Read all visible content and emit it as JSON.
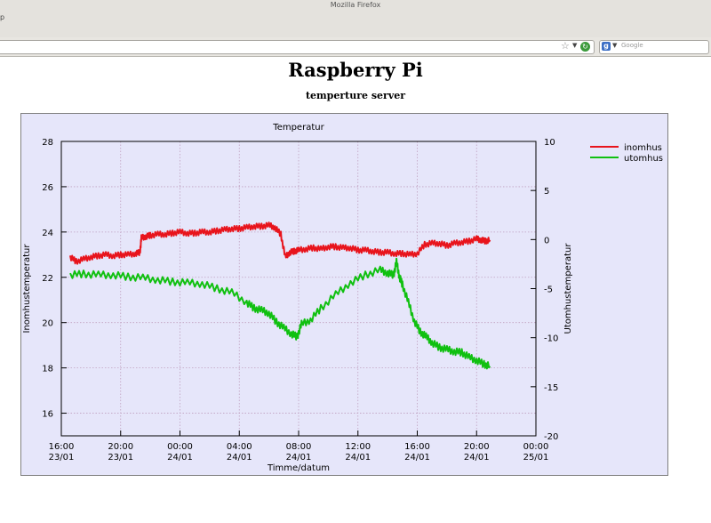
{
  "browser": {
    "window_title": "Mozilla Firefox",
    "edge_mark": "p",
    "search_placeholder": "Google"
  },
  "page": {
    "title": "Raspberry Pi",
    "subtitle": "temperture server"
  },
  "colors": {
    "plot_bg": "#e6e6fa",
    "grid": "#c0a0c0",
    "inomhus": "#e8141c",
    "utomhus": "#10c010"
  },
  "chart_data": {
    "type": "line",
    "title": "Temperatur",
    "xlabel": "Timme/datum",
    "ylabel": "Inomhustemperatur",
    "y2label": "Utomhustemperatur",
    "x_unit": "hours from 23/01 16:00",
    "xlim": [
      0,
      32
    ],
    "ylim": [
      15,
      28
    ],
    "y2lim": [
      -20,
      10
    ],
    "y_ticks": [
      16,
      18,
      20,
      22,
      24,
      26,
      28
    ],
    "y2_ticks": [
      -20,
      -15,
      -10,
      -5,
      0,
      5,
      10
    ],
    "x_ticks": [
      {
        "x": 0,
        "time": "16:00",
        "date": "23/01"
      },
      {
        "x": 4,
        "time": "20:00",
        "date": "23/01"
      },
      {
        "x": 8,
        "time": "00:00",
        "date": "24/01"
      },
      {
        "x": 12,
        "time": "04:00",
        "date": "24/01"
      },
      {
        "x": 16,
        "time": "08:00",
        "date": "24/01"
      },
      {
        "x": 20,
        "time": "12:00",
        "date": "24/01"
      },
      {
        "x": 24,
        "time": "16:00",
        "date": "24/01"
      },
      {
        "x": 28,
        "time": "20:00",
        "date": "24/01"
      },
      {
        "x": 32,
        "time": "00:00",
        "date": "25/01"
      }
    ],
    "grid": true,
    "legend_position": "top-right",
    "series": [
      {
        "name": "inomhus",
        "axis": "left",
        "x": [
          0.6,
          1.0,
          1.5,
          2.0,
          2.5,
          3.0,
          3.5,
          4.0,
          4.5,
          5.0,
          5.3,
          5.4,
          5.7,
          6.0,
          6.5,
          7.0,
          7.5,
          8.0,
          8.5,
          9.0,
          9.5,
          10.0,
          10.5,
          11.0,
          11.5,
          12.0,
          12.5,
          13.0,
          13.5,
          14.0,
          14.4,
          14.8,
          15.1,
          15.4,
          15.7,
          16.0,
          16.5,
          17.0,
          17.5,
          18.0,
          18.5,
          19.0,
          19.5,
          20.0,
          20.5,
          21.0,
          21.5,
          22.0,
          22.5,
          23.0,
          23.5,
          24.0,
          24.5,
          25.0,
          25.5,
          26.0,
          26.5,
          27.0,
          27.5,
          28.0,
          28.3,
          28.6,
          28.9
        ],
        "values": [
          22.9,
          22.7,
          22.8,
          22.9,
          22.95,
          23.0,
          22.95,
          23.0,
          23.0,
          23.05,
          23.1,
          23.75,
          23.8,
          23.85,
          23.9,
          23.9,
          23.95,
          24.0,
          23.95,
          23.95,
          24.0,
          24.0,
          24.05,
          24.1,
          24.15,
          24.15,
          24.2,
          24.25,
          24.25,
          24.3,
          24.2,
          23.9,
          22.9,
          23.1,
          23.15,
          23.2,
          23.25,
          23.3,
          23.25,
          23.35,
          23.35,
          23.3,
          23.3,
          23.2,
          23.2,
          23.15,
          23.1,
          23.1,
          23.05,
          23.05,
          23.0,
          23.05,
          23.45,
          23.5,
          23.5,
          23.4,
          23.5,
          23.55,
          23.6,
          23.7,
          23.65,
          23.6,
          23.65
        ]
      },
      {
        "name": "utomhus",
        "axis": "right",
        "x": [
          0.6,
          1.5,
          2.5,
          3.5,
          4.5,
          5.5,
          6.5,
          7.5,
          8.5,
          9.5,
          10.5,
          11.5,
          12.5,
          13.0,
          13.5,
          14.0,
          14.5,
          15.0,
          15.5,
          15.9,
          16.2,
          16.8,
          17.5,
          18.5,
          19.5,
          20.5,
          21.5,
          22.0,
          22.4,
          22.6,
          22.8,
          23.0,
          23.4,
          23.8,
          24.2,
          24.6,
          25.0,
          25.5,
          26.0,
          26.5,
          27.0,
          27.5,
          28.0,
          28.5,
          28.9
        ],
        "values": [
          -3.6,
          -3.5,
          -3.6,
          -3.6,
          -3.8,
          -3.9,
          -4.1,
          -4.3,
          -4.4,
          -4.5,
          -5.0,
          -5.4,
          -6.4,
          -7.0,
          -7.2,
          -7.5,
          -8.4,
          -9.0,
          -9.6,
          -9.9,
          -8.6,
          -8.2,
          -7.0,
          -5.6,
          -4.4,
          -3.6,
          -3.1,
          -3.4,
          -3.6,
          -2.3,
          -3.8,
          -4.6,
          -6.4,
          -8.3,
          -9.4,
          -9.9,
          -10.5,
          -11.0,
          -11.2,
          -11.4,
          -11.5,
          -12.0,
          -12.3,
          -12.7,
          -12.9
        ]
      }
    ]
  }
}
